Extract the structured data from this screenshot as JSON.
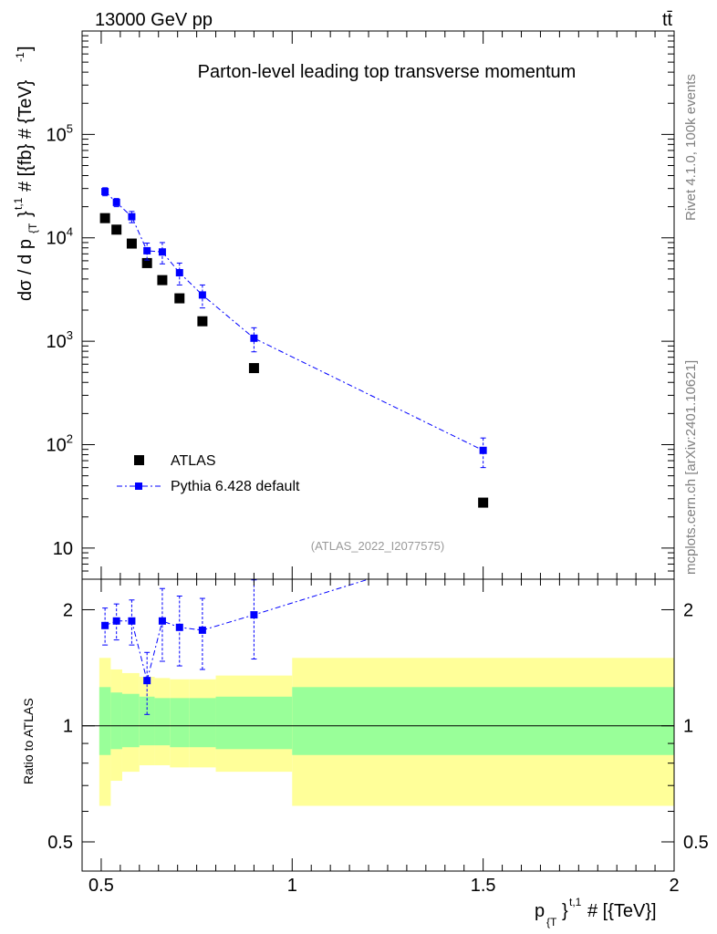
{
  "header": {
    "left_title": "13000 GeV pp",
    "right_title": "tt̄"
  },
  "side_text": {
    "rivet": "Rivet 4.1.0,  100k events",
    "mcplots": "mcplots.cern.ch [arXiv:2401.10621]"
  },
  "colors": {
    "data": "#000000",
    "mc": "#0000ff",
    "band_inner": "#99ff99",
    "band_outer": "#ffff99"
  },
  "chart_data": [
    {
      "type": "scatter",
      "panel": "main",
      "title": "Parton-level leading top transverse momentum",
      "analysis_id": "(ATLAS_2022_I2077575)",
      "ylabel": "dσ / d p_{T}^{t,1} # [{fb} # {TeV}^{-1}]",
      "yscale": "log",
      "ylim": [
        5,
        1000000
      ],
      "xlim": [
        0.45,
        2.0
      ],
      "y_tick_labels": [
        "10",
        "10^2",
        "10^3",
        "10^4",
        "10^5"
      ],
      "y_tick_values": [
        10,
        100,
        1000,
        10000,
        100000
      ],
      "legend_position": "bottom-left",
      "series": [
        {
          "name": "ATLAS",
          "style": "black-squares",
          "x": [
            0.51,
            0.54,
            0.58,
            0.62,
            0.66,
            0.705,
            0.765,
            0.9,
            1.5
          ],
          "values": [
            15500,
            12000,
            8800,
            5700,
            3900,
            2600,
            1560,
            550,
            27.5
          ]
        },
        {
          "name": "Pythia 6.428 default",
          "style": "blue-dashdot",
          "x": [
            0.51,
            0.54,
            0.58,
            0.62,
            0.66,
            0.705,
            0.765,
            0.9,
            1.5
          ],
          "values": [
            28000,
            22000,
            16000,
            7500,
            7300,
            4600,
            2800,
            1070,
            88
          ],
          "errors": [
            2500,
            2000,
            2000,
            1400,
            1700,
            1100,
            700,
            280,
            28
          ]
        }
      ]
    },
    {
      "type": "scatter",
      "panel": "ratio",
      "ylabel": "Ratio to ATLAS",
      "xlabel": "p_{T}^{t,1} # [{TeV}]",
      "xlim": [
        0.45,
        2.0
      ],
      "ylim": [
        0.42,
        2.4
      ],
      "yscale": "log",
      "x_tick_labels": [
        "0.5",
        "1",
        "1.5",
        "2"
      ],
      "x_tick_values": [
        0.5,
        1.0,
        1.5,
        2.0
      ],
      "y_tick_labels": [
        "0.5",
        "1",
        "2"
      ],
      "y_tick_values": [
        0.5,
        1,
        2
      ],
      "bands": {
        "edges": [
          0.495,
          0.525,
          0.555,
          0.6,
          0.64,
          0.68,
          0.73,
          0.8,
          1.0,
          2.0
        ],
        "inner_lo": [
          0.84,
          0.87,
          0.88,
          0.89,
          0.89,
          0.88,
          0.88,
          0.87,
          0.84
        ],
        "inner_hi": [
          1.26,
          1.22,
          1.21,
          1.19,
          1.18,
          1.18,
          1.18,
          1.19,
          1.26
        ],
        "outer_lo": [
          0.62,
          0.72,
          0.76,
          0.79,
          0.79,
          0.78,
          0.78,
          0.76,
          0.62
        ],
        "outer_hi": [
          1.5,
          1.4,
          1.37,
          1.34,
          1.33,
          1.32,
          1.32,
          1.35,
          1.5
        ]
      },
      "series": [
        {
          "name": "Pythia 6.428 default",
          "x": [
            0.51,
            0.54,
            0.58,
            0.62,
            0.66,
            0.705,
            0.765,
            0.9
          ],
          "values": [
            1.82,
            1.87,
            1.87,
            1.31,
            1.87,
            1.8,
            1.77,
            1.94
          ],
          "err_lo": [
            0.2,
            0.2,
            0.25,
            0.24,
            0.4,
            0.37,
            0.37,
            0.45
          ],
          "err_hi": [
            0.2,
            0.2,
            0.25,
            0.24,
            0.4,
            0.37,
            0.37,
            0.45
          ],
          "continues_to_x": 1.2,
          "continues_to_y": 2.4
        }
      ]
    }
  ]
}
